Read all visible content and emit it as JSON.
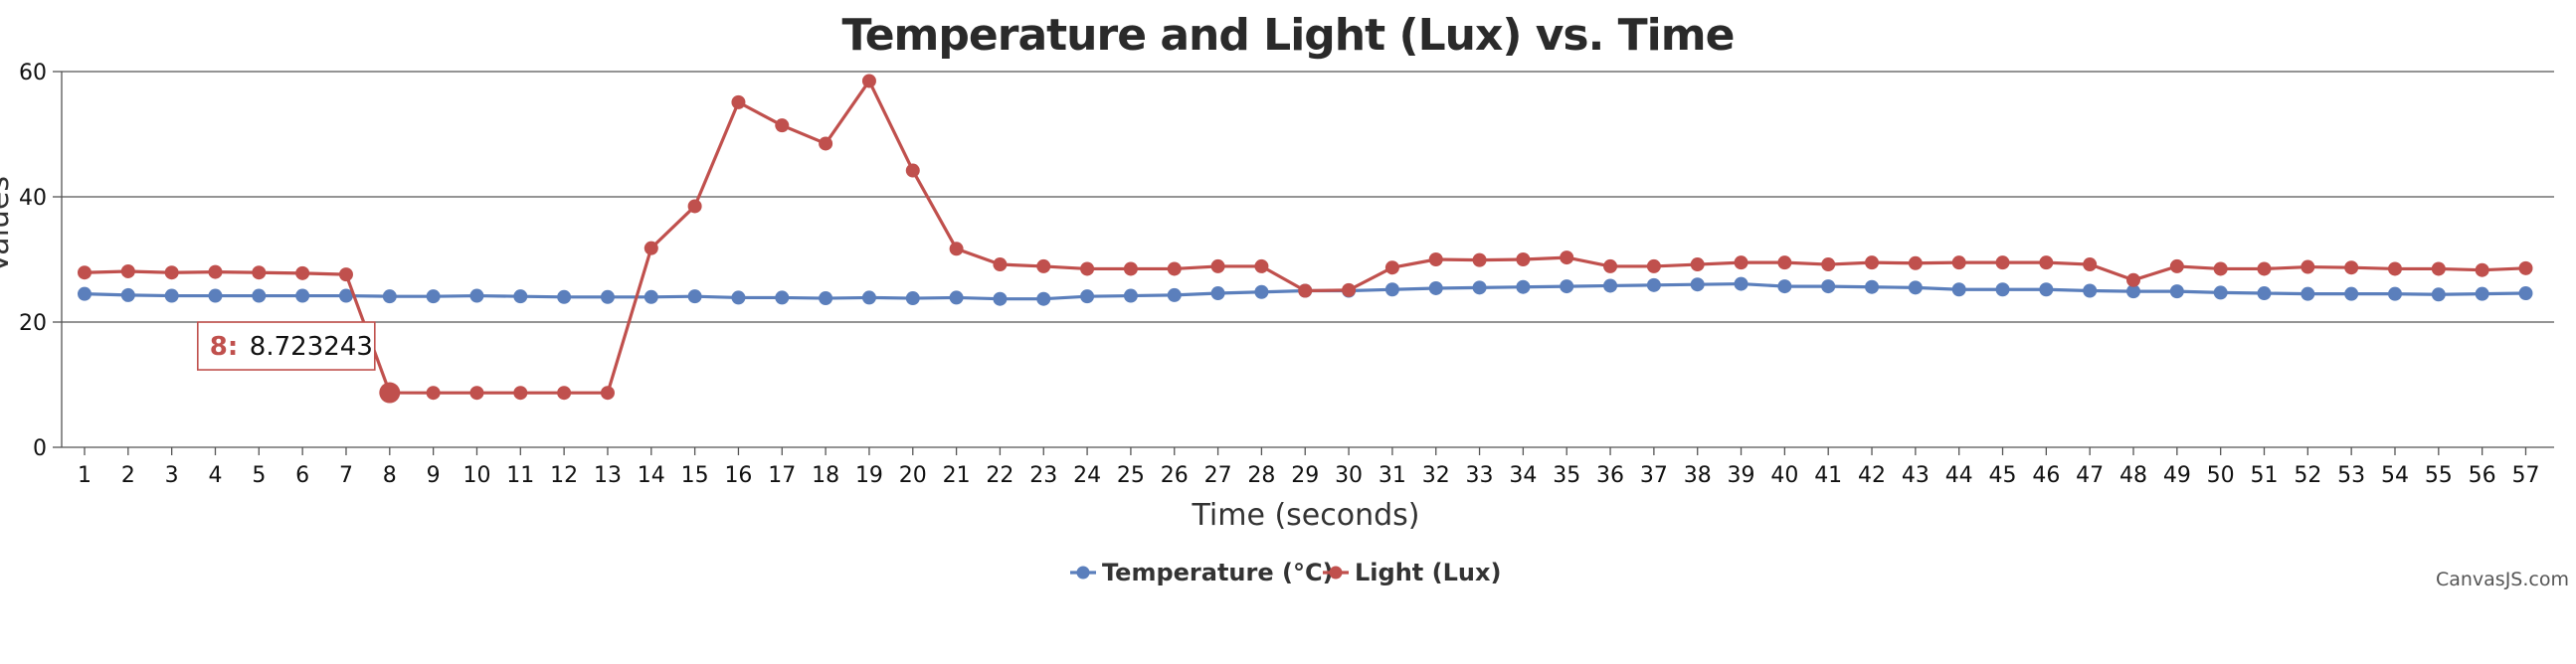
{
  "chart_data": {
    "type": "line",
    "title": "Temperature and Light (Lux) vs. Time",
    "xlabel": "Time (seconds)",
    "ylabel": "Values",
    "ylim": [
      0,
      60
    ],
    "yticks": [
      0,
      20,
      40,
      60
    ],
    "grid": true,
    "legend_position": "bottom-center",
    "x": [
      1,
      2,
      3,
      4,
      5,
      6,
      7,
      8,
      9,
      10,
      11,
      12,
      13,
      14,
      15,
      16,
      17,
      18,
      19,
      20,
      21,
      22,
      23,
      24,
      25,
      26,
      27,
      28,
      29,
      30,
      31,
      32,
      33,
      34,
      35,
      36,
      37,
      38,
      39,
      40,
      41,
      42,
      43,
      44,
      45,
      46,
      47,
      48,
      49,
      50,
      51,
      52,
      53,
      54,
      55,
      56,
      57
    ],
    "series": [
      {
        "name": "Temperature (°C)",
        "color": "#5b7fbc",
        "values": [
          24.5,
          24.3,
          24.2,
          24.2,
          24.2,
          24.2,
          24.2,
          24.1,
          24.1,
          24.2,
          24.1,
          24.0,
          24.0,
          24.0,
          24.1,
          23.9,
          23.9,
          23.8,
          23.9,
          23.8,
          23.9,
          23.7,
          23.7,
          24.1,
          24.2,
          24.3,
          24.6,
          24.8,
          25.0,
          25.0,
          25.2,
          25.4,
          25.5,
          25.6,
          25.7,
          25.8,
          25.9,
          26.0,
          26.1,
          25.7,
          25.7,
          25.6,
          25.5,
          25.2,
          25.2,
          25.2,
          25.0,
          24.9,
          24.9,
          24.7,
          24.6,
          24.5,
          24.5,
          24.5,
          24.4,
          24.5,
          24.6
        ]
      },
      {
        "name": "Light (Lux)",
        "color": "#c0504d",
        "values": [
          27.9,
          28.1,
          27.9,
          28.0,
          27.9,
          27.8,
          27.6,
          8.723243,
          8.7,
          8.7,
          8.7,
          8.7,
          8.7,
          31.8,
          38.5,
          55.1,
          51.4,
          48.5,
          58.5,
          44.2,
          31.7,
          29.2,
          28.9,
          28.5,
          28.5,
          28.5,
          28.9,
          28.9,
          25.0,
          25.1,
          28.7,
          30.0,
          29.9,
          30.0,
          30.3,
          28.9,
          28.9,
          29.2,
          29.5,
          29.5,
          29.2,
          29.5,
          29.4,
          29.5,
          29.5,
          29.5,
          29.2,
          26.7,
          28.9,
          28.5,
          28.5,
          28.8,
          28.7,
          28.5,
          28.5,
          28.3,
          28.6
        ]
      }
    ],
    "tooltip": {
      "x_label": "8:",
      "value": "8.723243",
      "series_index": 1,
      "point_index": 7
    }
  },
  "credit": "CanvasJS.com"
}
